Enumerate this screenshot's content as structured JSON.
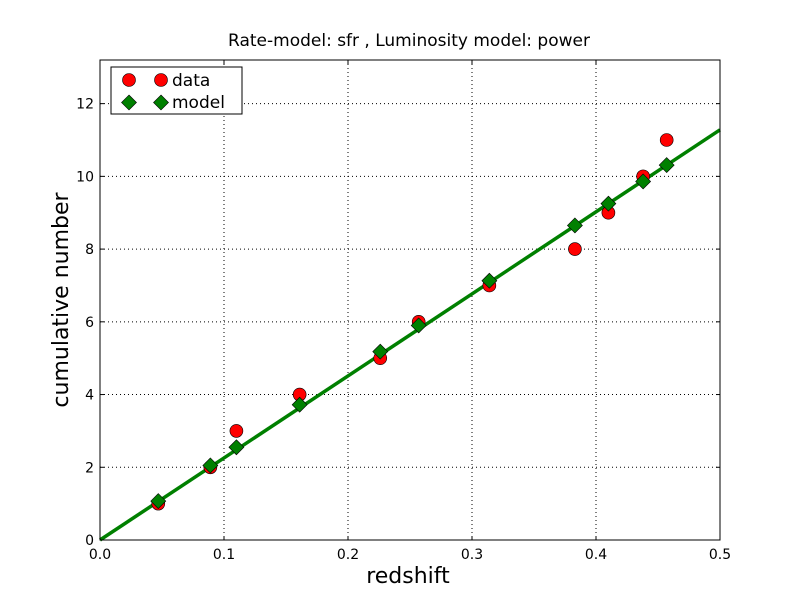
{
  "chart_data": {
    "type": "scatter",
    "title": "Rate-model: sfr , Luminosity model: power",
    "xlabel": "redshift",
    "ylabel": "cumulative number",
    "xlim": [
      0.0,
      0.5
    ],
    "ylim": [
      0,
      13.2
    ],
    "xticks": [
      0.0,
      0.1,
      0.2,
      0.3,
      0.4,
      0.5
    ],
    "xtick_labels": [
      "0.0",
      "0.1",
      "0.2",
      "0.3",
      "0.4",
      "0.5"
    ],
    "yticks": [
      0,
      2,
      4,
      6,
      8,
      10,
      12
    ],
    "ytick_labels": [
      "0",
      "2",
      "4",
      "6",
      "8",
      "10",
      "12"
    ],
    "grid": true,
    "legend_position": "top-left",
    "series": [
      {
        "name": "data",
        "marker": "circle",
        "color": "#ff0000",
        "x": [
          0.047,
          0.089,
          0.11,
          0.161,
          0.226,
          0.257,
          0.314,
          0.383,
          0.41,
          0.438,
          0.457
        ],
        "y": [
          1,
          2,
          3,
          4,
          5,
          6,
          7,
          8,
          9,
          10,
          11
        ]
      },
      {
        "name": "model",
        "marker": "diamond",
        "color": "#008000",
        "x": [
          0.047,
          0.089,
          0.11,
          0.161,
          0.226,
          0.257,
          0.314,
          0.383,
          0.41,
          0.438,
          0.457
        ],
        "y": [
          1.07,
          2.05,
          2.55,
          3.72,
          5.18,
          5.9,
          7.13,
          8.65,
          9.25,
          9.86,
          10.31
        ]
      }
    ],
    "fit_line": {
      "color": "#008000",
      "x": [
        0.0,
        0.5
      ],
      "y": [
        0.0,
        11.28
      ]
    }
  }
}
